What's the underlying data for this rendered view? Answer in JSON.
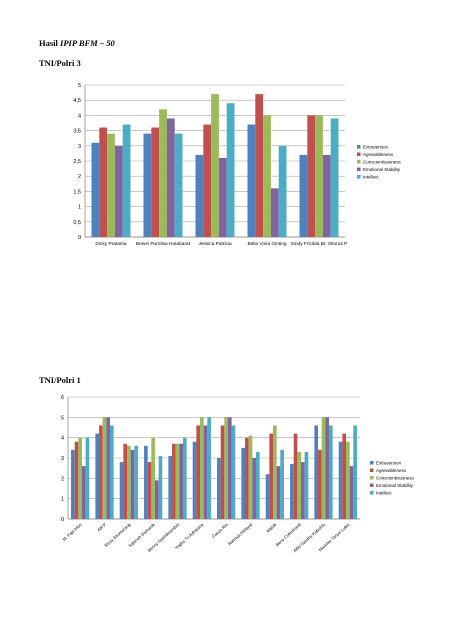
{
  "page": {
    "title_prefix": "Hasil ",
    "title_italic": "IPIP BFM – 50",
    "section1": "TNI/Polri 3",
    "section2": "TNI/Polri 1"
  },
  "colors": [
    "#4f81bd",
    "#c0504d",
    "#9bbb59",
    "#8064a2",
    "#4bacc6"
  ],
  "chart_data": [
    {
      "type": "bar",
      "ylim": [
        0,
        5
      ],
      "yticks": [
        "0",
        "0,5",
        "1",
        "1,5",
        "2",
        "2,5",
        "3",
        "3,5",
        "4",
        "4,5",
        "5"
      ],
      "categories": [
        "Dicky Pratama",
        "Bewei Purnilsa Hutabarat",
        "Jessica Patricia",
        "Bella Vinia Ginting",
        "Sindy Fricilda Br. Sitorus P"
      ],
      "legend_position": "right",
      "grid": true,
      "series": [
        {
          "name": "Extraversion",
          "values": [
            3.1,
            3.4,
            2.7,
            3.7,
            2.7
          ]
        },
        {
          "name": "Agreeableness",
          "values": [
            3.6,
            3.6,
            3.7,
            4.7,
            4.0
          ]
        },
        {
          "name": "Conscientiousness",
          "values": [
            3.4,
            4.2,
            4.7,
            4.0,
            4.0
          ]
        },
        {
          "name": "Emotional Stability",
          "values": [
            3.0,
            3.9,
            2.6,
            1.6,
            2.7
          ]
        },
        {
          "name": "Intellect",
          "values": [
            3.7,
            3.4,
            4.4,
            3.0,
            3.9
          ]
        }
      ]
    },
    {
      "type": "bar",
      "ylim": [
        0,
        6
      ],
      "yticks": [
        "0",
        "1",
        "2",
        "3",
        "4",
        "5",
        "6"
      ],
      "categories": [
        "M. Fajri Irfan",
        "Alif P",
        "Reza Situmorang",
        "Sakinah Damanik",
        "Benny Syahdinambiri",
        "Yogha Tri Adhitiana",
        "Caeza Rio",
        "Rahmat Hidayat",
        "Wahib",
        "Bena Cokrohardi",
        "Alfid Sandhy Kabuhfu",
        "Mauriter Tanya Lubis"
      ],
      "legend_position": "right",
      "grid": true,
      "series": [
        {
          "name": "Extraversion",
          "values": [
            3.4,
            4.2,
            2.8,
            3.6,
            3.1,
            3.8,
            3.0,
            3.5,
            2.2,
            2.7,
            4.6,
            3.8
          ]
        },
        {
          "name": "Agreeableness",
          "values": [
            3.8,
            4.6,
            3.7,
            2.8,
            3.7,
            4.6,
            4.6,
            4.0,
            4.2,
            4.2,
            3.4,
            4.2
          ]
        },
        {
          "name": "Conscientiousness",
          "values": [
            4.0,
            5.0,
            3.6,
            4.0,
            3.7,
            5.0,
            5.0,
            4.1,
            4.6,
            3.3,
            5.0,
            3.8
          ]
        },
        {
          "name": "Emotional Stability",
          "values": [
            2.6,
            5.0,
            3.4,
            1.9,
            3.7,
            4.6,
            5.0,
            3.0,
            2.6,
            2.8,
            5.0,
            2.6
          ]
        },
        {
          "name": "Intellect",
          "values": [
            4.0,
            4.6,
            3.6,
            3.1,
            4.0,
            5.0,
            4.6,
            3.3,
            3.4,
            3.3,
            4.6,
            4.6
          ]
        }
      ]
    }
  ]
}
